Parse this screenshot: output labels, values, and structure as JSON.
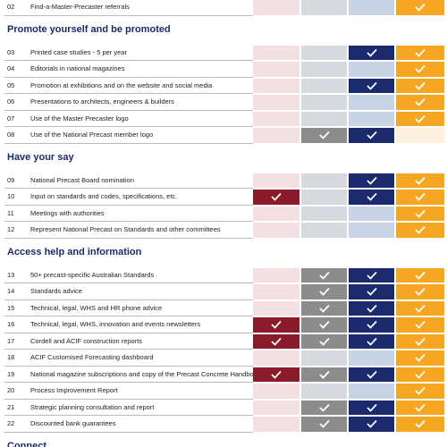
{
  "top_rows": [
    {
      "num": "02",
      "label": "Find-a-Master-Precaster referrals",
      "checks": [
        false,
        false,
        false,
        true
      ]
    }
  ],
  "sections": [
    {
      "title": "Promote yourself and be promoted",
      "rows": [
        {
          "num": "03",
          "label": "Printed case studies - 5 per year",
          "checks": [
            false,
            false,
            true,
            true
          ]
        },
        {
          "num": "04",
          "label": "Editorials in national magazines",
          "checks": [
            false,
            false,
            false,
            true
          ]
        },
        {
          "num": "05",
          "label": "Promotion at exhibitions and on the website and social media",
          "checks": [
            false,
            false,
            true,
            true
          ]
        },
        {
          "num": "06",
          "label": "Presentations to architects, engineers & builders",
          "checks": [
            false,
            false,
            false,
            true
          ]
        },
        {
          "num": "07",
          "label": "Use of the Master Precaster logo",
          "checks": [
            false,
            false,
            false,
            true
          ]
        },
        {
          "num": "08",
          "label": "Use of the National Precast member logo",
          "checks": [
            false,
            true,
            true,
            false
          ]
        }
      ]
    },
    {
      "title": "Have your say",
      "rows": [
        {
          "num": "09",
          "label": "National Precast Board nomination",
          "checks": [
            false,
            false,
            true,
            true
          ]
        },
        {
          "num": "10",
          "label": "Input on standards and codes, specifications, etc.",
          "checks": [
            true,
            false,
            true,
            true
          ]
        },
        {
          "num": "11",
          "label": "Meetings with authorities",
          "checks": [
            false,
            false,
            false,
            true
          ]
        },
        {
          "num": "12",
          "label": "Represent National Precast on Standards and other committees",
          "checks": [
            false,
            false,
            false,
            true
          ]
        }
      ]
    },
    {
      "title": "Access help and information",
      "rows": [
        {
          "num": "13",
          "label": "50+ precast-specific Australian Standards",
          "checks": [
            false,
            true,
            true,
            true
          ]
        },
        {
          "num": "14",
          "label": "Standards advice",
          "checks": [
            false,
            true,
            true,
            true
          ]
        },
        {
          "num": "15",
          "label": "Technical, legal, WHS and HR phone advice",
          "checks": [
            false,
            true,
            true,
            true
          ]
        },
        {
          "num": "16",
          "label": "Technical, legal, WHS, innovation and events newsletters",
          "checks": [
            true,
            true,
            true,
            true
          ]
        },
        {
          "num": "17",
          "label": "Cordell and ACIF construction reports",
          "checks": [
            true,
            true,
            true,
            true
          ]
        },
        {
          "num": "18",
          "label": "ACIF Customised Forecasting dashboard",
          "checks": [
            false,
            false,
            false,
            true
          ]
        },
        {
          "num": "19",
          "label": "National magazine subscriptions and copy of the Precast Concrete Handbook",
          "checks": [
            true,
            true,
            true,
            true
          ]
        },
        {
          "num": "20",
          "label": "Process Improvement Report",
          "checks": [
            false,
            false,
            false,
            true
          ]
        },
        {
          "num": "21",
          "label": "Strategic planning consultation and report",
          "checks": [
            false,
            true,
            true,
            true
          ]
        },
        {
          "num": "22",
          "label": "Discounted bank guarantees",
          "checks": [
            false,
            true,
            true,
            true
          ]
        }
      ]
    }
  ],
  "next_section": "Connect"
}
